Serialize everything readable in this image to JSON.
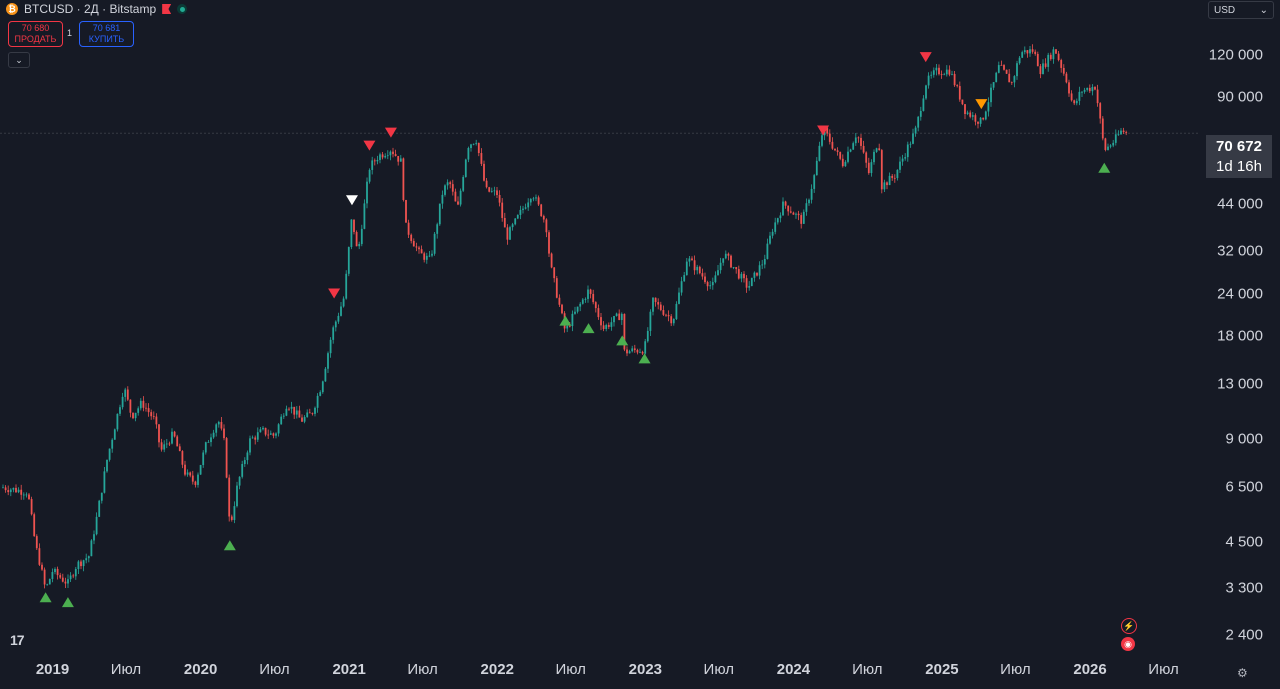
{
  "header": {
    "symbol": "BTCUSD · 2Д · Bitstamp",
    "coin_glyph": "₿"
  },
  "trade": {
    "sell_price": "70 680",
    "sell_label": "ПРОДАТЬ",
    "buy_price": "70 681",
    "buy_label": "КУПИТЬ",
    "spread": "1"
  },
  "currency": {
    "value": "USD"
  },
  "price_axis": {
    "labels": [
      "120 000",
      "90 000",
      "44 000",
      "32 000",
      "24 000",
      "18 000",
      "13 000",
      "9 000",
      "6 500",
      "4 500",
      "3 300",
      "2 400"
    ]
  },
  "time_axis": {
    "labels": [
      "2019",
      "Июл",
      "2020",
      "Июл",
      "2021",
      "Июл",
      "2022",
      "Июл",
      "2023",
      "Июл",
      "2024",
      "Июл",
      "2025",
      "Июл",
      "2026",
      "Июл"
    ]
  },
  "last_price": {
    "value": "70 672",
    "countdown": "1d 16h"
  },
  "logo_text": "17",
  "chart_data": {
    "type": "candlestick",
    "scale": "log",
    "ylim": [
      2100,
      160000
    ],
    "up_color": "#26a69a",
    "down_color": "#ef5350",
    "series": [
      {
        "date": "2018-09-01",
        "close": 6500
      },
      {
        "date": "2018-10-01",
        "close": 6400
      },
      {
        "date": "2018-11-01",
        "close": 6300
      },
      {
        "date": "2018-11-20",
        "close": 4400
      },
      {
        "date": "2018-12-01",
        "close": 3900
      },
      {
        "date": "2018-12-15",
        "close": 3250
      },
      {
        "date": "2019-01-01",
        "close": 3700
      },
      {
        "date": "2019-02-08",
        "close": 3400
      },
      {
        "date": "2019-03-01",
        "close": 3850
      },
      {
        "date": "2019-04-01",
        "close": 4100
      },
      {
        "date": "2019-04-20",
        "close": 5300
      },
      {
        "date": "2019-05-15",
        "close": 7800
      },
      {
        "date": "2019-06-26",
        "close": 12800
      },
      {
        "date": "2019-07-15",
        "close": 10500
      },
      {
        "date": "2019-08-10",
        "close": 11500
      },
      {
        "date": "2019-09-10",
        "close": 10200
      },
      {
        "date": "2019-09-25",
        "close": 8300
      },
      {
        "date": "2019-10-26",
        "close": 9300
      },
      {
        "date": "2019-11-25",
        "close": 7100
      },
      {
        "date": "2019-12-18",
        "close": 6700
      },
      {
        "date": "2020-01-15",
        "close": 8700
      },
      {
        "date": "2020-02-13",
        "close": 10300
      },
      {
        "date": "2020-03-01",
        "close": 8600
      },
      {
        "date": "2020-03-13",
        "close": 4900
      },
      {
        "date": "2020-04-01",
        "close": 6600
      },
      {
        "date": "2020-05-01",
        "close": 8900
      },
      {
        "date": "2020-06-01",
        "close": 9500
      },
      {
        "date": "2020-07-01",
        "close": 9200
      },
      {
        "date": "2020-08-01",
        "close": 11500
      },
      {
        "date": "2020-09-05",
        "close": 10200
      },
      {
        "date": "2020-10-01",
        "close": 10700
      },
      {
        "date": "2020-10-25",
        "close": 13000
      },
      {
        "date": "2020-11-20",
        "close": 18500
      },
      {
        "date": "2020-12-20",
        "close": 23500
      },
      {
        "date": "2021-01-08",
        "close": 40500
      },
      {
        "date": "2021-01-22",
        "close": 31000
      },
      {
        "date": "2021-02-20",
        "close": 56000
      },
      {
        "date": "2021-03-13",
        "close": 60500
      },
      {
        "date": "2021-04-14",
        "close": 63500
      },
      {
        "date": "2021-05-10",
        "close": 58000
      },
      {
        "date": "2021-05-19",
        "close": 38000
      },
      {
        "date": "2021-06-22",
        "close": 31500
      },
      {
        "date": "2021-07-20",
        "close": 30000
      },
      {
        "date": "2021-08-20",
        "close": 48000
      },
      {
        "date": "2021-09-05",
        "close": 51000
      },
      {
        "date": "2021-09-25",
        "close": 42000
      },
      {
        "date": "2021-10-20",
        "close": 65000
      },
      {
        "date": "2021-11-10",
        "close": 68000
      },
      {
        "date": "2021-12-04",
        "close": 48000
      },
      {
        "date": "2022-01-01",
        "close": 47000
      },
      {
        "date": "2022-01-24",
        "close": 35000
      },
      {
        "date": "2022-03-28",
        "close": 47500
      },
      {
        "date": "2022-05-01",
        "close": 38500
      },
      {
        "date": "2022-05-12",
        "close": 29000
      },
      {
        "date": "2022-06-18",
        "close": 18500
      },
      {
        "date": "2022-07-01",
        "close": 20000
      },
      {
        "date": "2022-08-14",
        "close": 24500
      },
      {
        "date": "2022-09-20",
        "close": 19000
      },
      {
        "date": "2022-11-05",
        "close": 21000
      },
      {
        "date": "2022-11-10",
        "close": 16200
      },
      {
        "date": "2022-12-30",
        "close": 16500
      },
      {
        "date": "2023-01-20",
        "close": 22800
      },
      {
        "date": "2023-03-10",
        "close": 20000
      },
      {
        "date": "2023-04-14",
        "close": 30500
      },
      {
        "date": "2023-06-15",
        "close": 25000
      },
      {
        "date": "2023-07-13",
        "close": 31500
      },
      {
        "date": "2023-09-11",
        "close": 25000
      },
      {
        "date": "2023-10-20",
        "close": 30000
      },
      {
        "date": "2023-11-10",
        "close": 37000
      },
      {
        "date": "2023-12-08",
        "close": 44000
      },
      {
        "date": "2024-01-23",
        "close": 39000
      },
      {
        "date": "2024-02-20",
        "close": 52000
      },
      {
        "date": "2024-03-14",
        "close": 73000
      },
      {
        "date": "2024-05-01",
        "close": 57500
      },
      {
        "date": "2024-06-05",
        "close": 71000
      },
      {
        "date": "2024-07-05",
        "close": 54000
      },
      {
        "date": "2024-07-29",
        "close": 69000
      },
      {
        "date": "2024-08-05",
        "close": 49500
      },
      {
        "date": "2024-09-06",
        "close": 53000
      },
      {
        "date": "2024-10-29",
        "close": 72500
      },
      {
        "date": "2024-11-22",
        "close": 99000
      },
      {
        "date": "2024-12-17",
        "close": 107000
      },
      {
        "date": "2025-01-20",
        "close": 108000
      },
      {
        "date": "2025-02-28",
        "close": 82000
      },
      {
        "date": "2025-04-08",
        "close": 76000
      },
      {
        "date": "2025-05-22",
        "close": 111000
      },
      {
        "date": "2025-06-22",
        "close": 99000
      },
      {
        "date": "2025-07-14",
        "close": 122000
      },
      {
        "date": "2025-08-14",
        "close": 123500
      },
      {
        "date": "2025-09-01",
        "close": 108000
      },
      {
        "date": "2025-10-06",
        "close": 125000
      },
      {
        "date": "2025-11-04",
        "close": 101000
      },
      {
        "date": "2025-11-21",
        "close": 84000
      },
      {
        "date": "2025-12-10",
        "close": 94000
      },
      {
        "date": "2026-01-14",
        "close": 97000
      },
      {
        "date": "2026-02-05",
        "close": 63000
      },
      {
        "date": "2026-03-01",
        "close": 67000
      },
      {
        "date": "2026-03-20",
        "close": 72000
      },
      {
        "date": "2026-04-02",
        "close": 70672
      }
    ],
    "markers_down": [
      {
        "date": "2020-11-25",
        "price": 24000,
        "color": "#f23645"
      },
      {
        "date": "2021-01-08",
        "price": 45000,
        "color": "#ffffff"
      },
      {
        "date": "2021-02-20",
        "price": 65000,
        "color": "#f23645"
      },
      {
        "date": "2021-04-14",
        "price": 71000,
        "color": "#f23645"
      },
      {
        "date": "2024-03-14",
        "price": 72000,
        "color": "#f23645"
      },
      {
        "date": "2024-11-22",
        "price": 118000,
        "color": "#f23645"
      },
      {
        "date": "2025-04-08",
        "price": 86000,
        "color": "#ff9800"
      }
    ],
    "markers_up": [
      {
        "date": "2018-12-15",
        "price": 3100
      },
      {
        "date": "2019-02-08",
        "price": 3000
      },
      {
        "date": "2020-03-13",
        "price": 4400
      },
      {
        "date": "2022-06-18",
        "price": 20000
      },
      {
        "date": "2022-08-14",
        "price": 19000
      },
      {
        "date": "2022-11-05",
        "price": 17500
      },
      {
        "date": "2022-12-30",
        "price": 15500
      },
      {
        "date": "2026-02-05",
        "price": 56000
      }
    ]
  }
}
